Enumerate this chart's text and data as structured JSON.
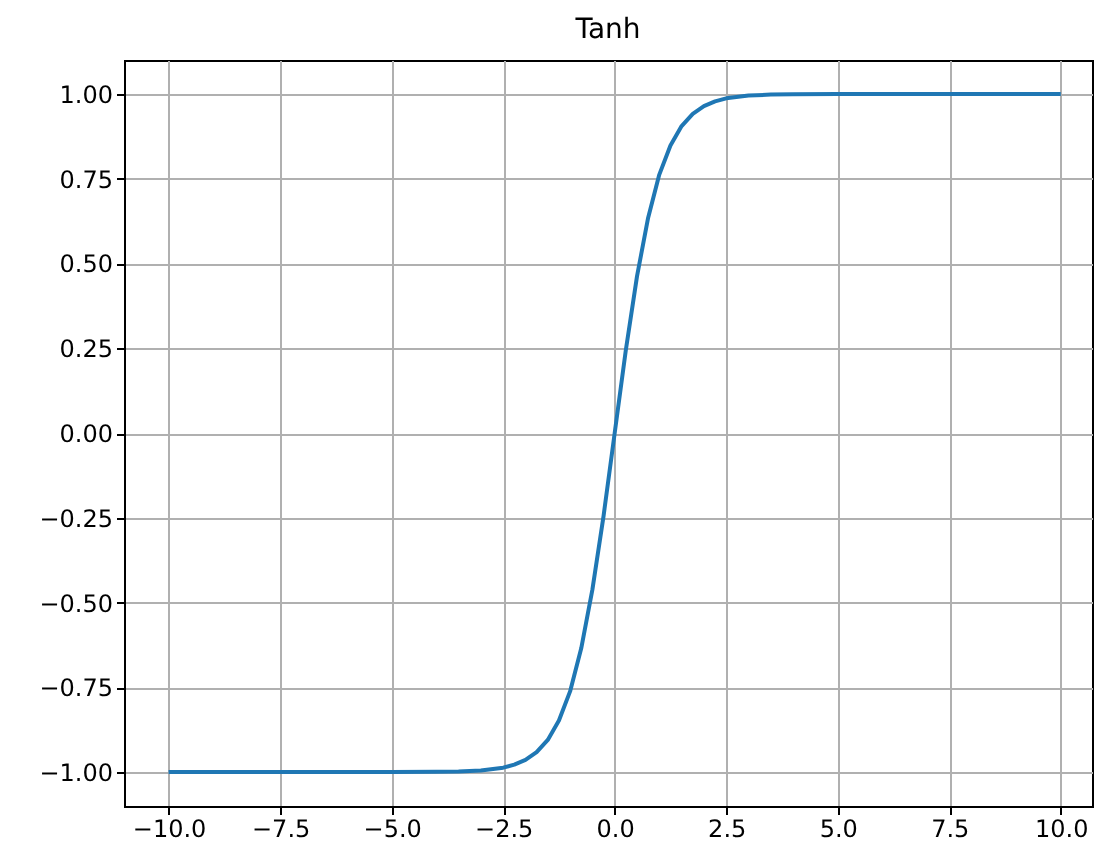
{
  "chart_data": {
    "type": "line",
    "title": "Tanh",
    "x": [
      -10,
      -7.5,
      -5,
      -4,
      -3.5,
      -3,
      -2.5,
      -2.25,
      -2,
      -1.75,
      -1.5,
      -1.25,
      -1,
      -0.75,
      -0.5,
      -0.25,
      0,
      0.25,
      0.5,
      0.75,
      1,
      1.25,
      1.5,
      1.75,
      2,
      2.25,
      2.5,
      3,
      3.5,
      4,
      5,
      7.5,
      10
    ],
    "series": [
      {
        "color": "#1f77b4",
        "values": [
          -1,
          -1,
          -1,
          -0.999,
          -0.998,
          -0.995,
          -0.987,
          -0.978,
          -0.964,
          -0.941,
          -0.905,
          -0.848,
          -0.762,
          -0.635,
          -0.462,
          -0.245,
          0,
          0.245,
          0.462,
          0.635,
          0.762,
          0.848,
          0.905,
          0.941,
          0.964,
          0.978,
          0.987,
          0.995,
          0.998,
          0.999,
          1,
          1,
          1
        ]
      }
    ],
    "xlim": [
      -11,
      10.7
    ],
    "ylim": [
      -1.1,
      1.1
    ],
    "xticks": [
      {
        "value": -10,
        "label": "−10.0"
      },
      {
        "value": -7.5,
        "label": "−7.5"
      },
      {
        "value": -5,
        "label": "−5.0"
      },
      {
        "value": -2.5,
        "label": "−2.5"
      },
      {
        "value": 0,
        "label": "0.0"
      },
      {
        "value": 2.5,
        "label": "2.5"
      },
      {
        "value": 5,
        "label": "5.0"
      },
      {
        "value": 7.5,
        "label": "7.5"
      },
      {
        "value": 10,
        "label": "10.0"
      }
    ],
    "yticks": [
      {
        "value": -1,
        "label": "−1.00"
      },
      {
        "value": -0.75,
        "label": "−0.75"
      },
      {
        "value": -0.5,
        "label": "−0.50"
      },
      {
        "value": -0.25,
        "label": "−0.25"
      },
      {
        "value": 0,
        "label": "0.00"
      },
      {
        "value": 0.25,
        "label": "0.25"
      },
      {
        "value": 0.5,
        "label": "0.50"
      },
      {
        "value": 0.75,
        "label": "0.75"
      },
      {
        "value": 1,
        "label": "1.00"
      }
    ],
    "grid": true
  }
}
